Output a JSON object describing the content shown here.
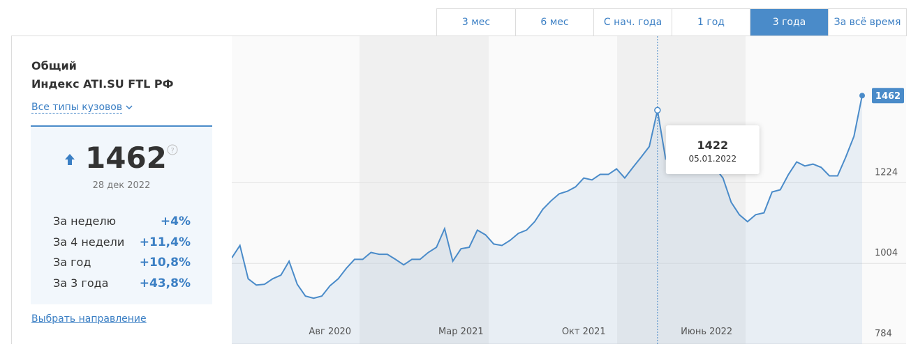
{
  "tabs": {
    "items": [
      "3 мес",
      "6 мес",
      "С нач. года",
      "1 год",
      "3 года",
      "За всё время"
    ],
    "active": 4
  },
  "panel": {
    "title": "Общий",
    "subtitle": "Индекс ATI.SU FTL РФ",
    "filter": "Все типы кузовов",
    "date": "28 дек 2022",
    "stats": [
      {
        "label": "За неделю",
        "value": "+4%"
      },
      {
        "label": "За 4 недели",
        "value": "+11,4%"
      },
      {
        "label": "За год",
        "value": "+10,8%"
      },
      {
        "label": "За 3 года",
        "value": "+43,8%"
      }
    ],
    "link": "Выбрать направление"
  },
  "chart_data": {
    "type": "line",
    "color": "#4a8bc9",
    "categories": [
      null,
      null,
      null,
      null,
      null,
      null,
      null,
      null,
      null,
      null,
      null,
      null,
      "Авг 2020",
      null,
      null,
      null,
      null,
      null,
      null,
      null,
      null,
      null,
      null,
      null,
      null,
      null,
      null,
      null,
      "Мар 2021",
      null,
      null,
      null,
      null,
      null,
      null,
      null,
      null,
      null,
      null,
      null,
      null,
      null,
      null,
      "Окт 2021",
      null,
      null,
      null,
      null,
      null,
      null,
      null,
      null,
      null,
      null,
      null,
      null,
      null,
      null,
      "Июнь 2022",
      null,
      null,
      null,
      null,
      null,
      null,
      null,
      null,
      null,
      null,
      null,
      null,
      null,
      null,
      null,
      null,
      null,
      null,
      null
    ],
    "values": [
      1019,
      1053,
      962,
      945,
      947,
      962,
      972,
      1010,
      947,
      915,
      909,
      915,
      943,
      962,
      991,
      1015,
      1015,
      1034,
      1029,
      1029,
      1015,
      1000,
      1015,
      1015,
      1034,
      1048,
      1099,
      1010,
      1044,
      1048,
      1095,
      1082,
      1057,
      1053,
      1067,
      1086,
      1095,
      1118,
      1152,
      1175,
      1194,
      1201,
      1213,
      1237,
      1232,
      1247,
      1247,
      1262,
      1237,
      1266,
      1294,
      1323,
      1422,
      1289,
      1300,
      1308,
      1323,
      1332,
      1294,
      1266,
      1237,
      1171,
      1137,
      1118,
      1137,
      1142,
      1199,
      1205,
      1247,
      1281,
      1270,
      1275,
      1266,
      1243,
      1243,
      1294,
      1351,
      1462
    ],
    "ylim": [
      784,
      1624
    ],
    "yticks": [
      784,
      1004,
      1224
    ],
    "grid": true,
    "tooltip": {
      "index": 52,
      "date": "05.01.2022"
    }
  }
}
